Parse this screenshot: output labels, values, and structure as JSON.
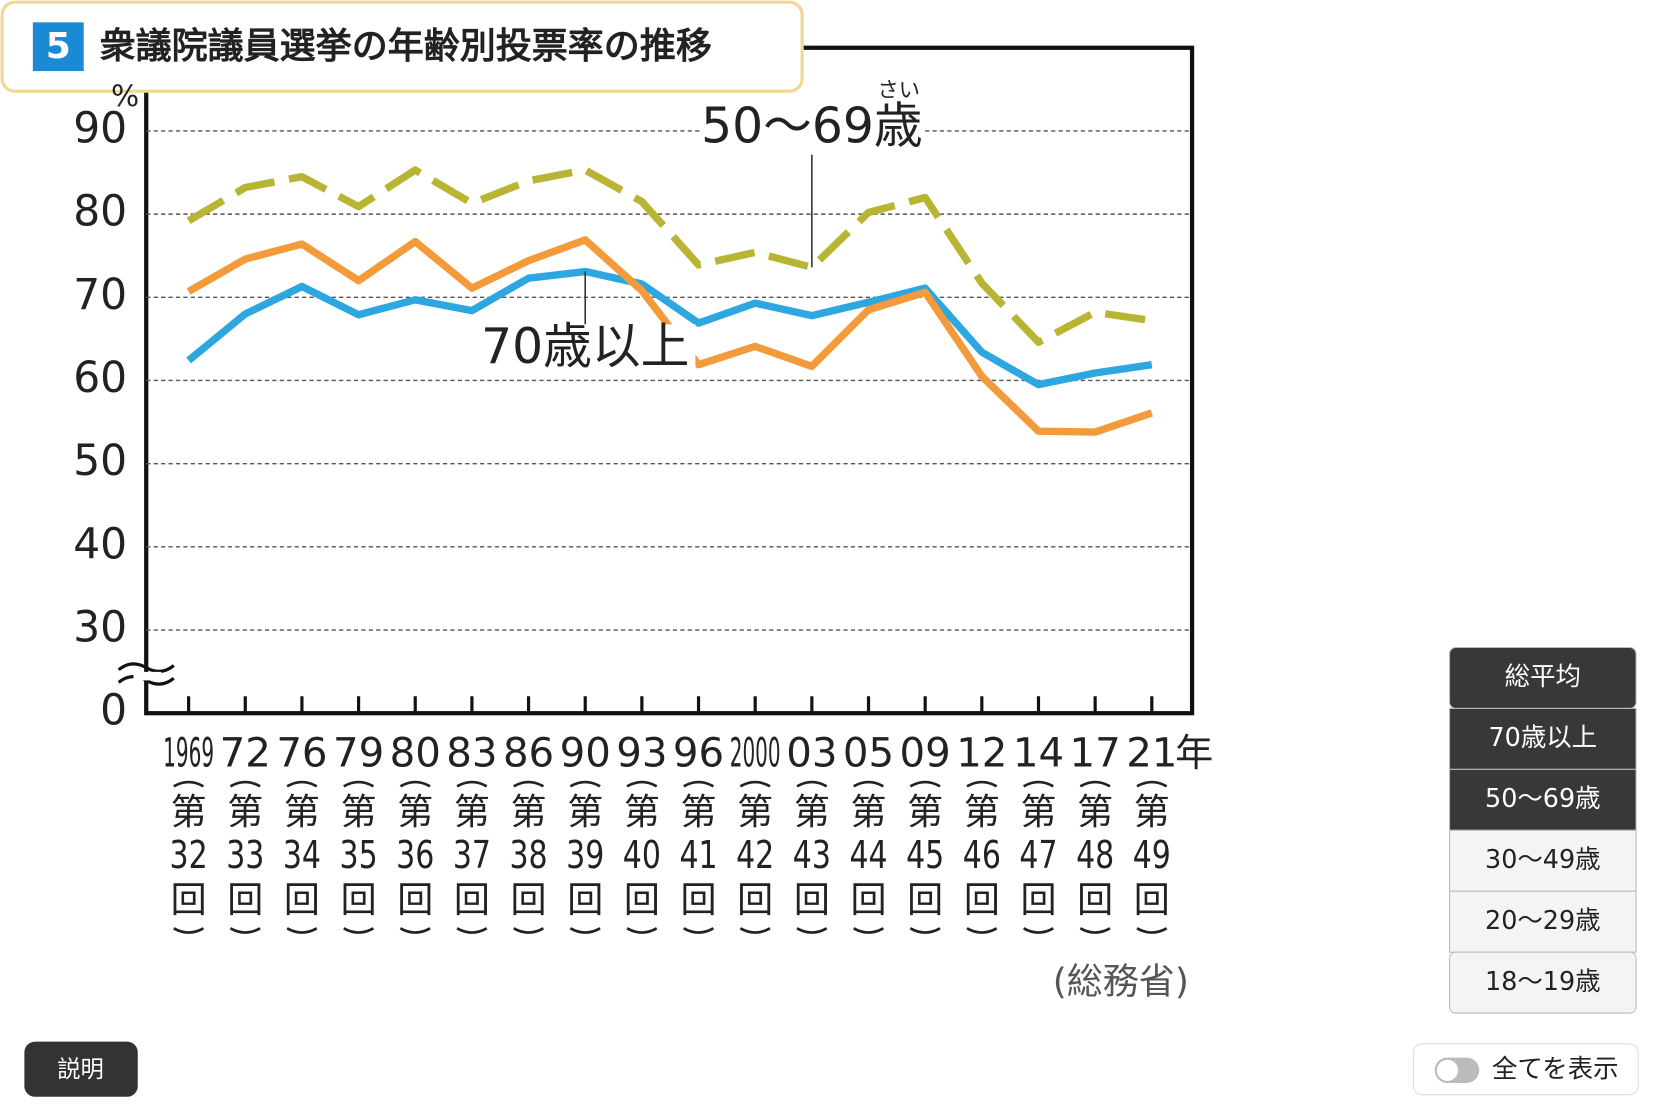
{
  "chart_data": {
    "type": "line",
    "title_number": "5",
    "title": "衆議院議員選挙の年齢別投票率の推移",
    "y_unit": "%",
    "categories": [
      "1969",
      "72",
      "76",
      "79",
      "80",
      "83",
      "86",
      "90",
      "93",
      "96",
      "2000",
      "03",
      "05",
      "09",
      "12",
      "14",
      "17",
      "21"
    ],
    "x_suffix": "年",
    "session_prefix": "第",
    "session_suffix": "回",
    "sessions": [
      32,
      33,
      34,
      35,
      36,
      37,
      38,
      39,
      40,
      41,
      42,
      43,
      44,
      45,
      46,
      47,
      48,
      49
    ],
    "series": [
      {
        "name": "総平均",
        "color": "#2ea7e0",
        "values": [
          62.4,
          68.0,
          71.3,
          67.9,
          69.7,
          68.4,
          72.3,
          73.1,
          71.6,
          66.9,
          69.3,
          67.8,
          69.4,
          71.1,
          63.4,
          59.5,
          60.9,
          61.9
        ]
      },
      {
        "name": "70歳以上",
        "color": "#f39a3a",
        "values": [
          70.7,
          74.6,
          76.4,
          72.0,
          76.7,
          71.1,
          74.4,
          76.9,
          70.8,
          61.9,
          64.1,
          61.7,
          68.5,
          70.6,
          60.5,
          53.9,
          53.8,
          56.1
        ]
      },
      {
        "name": "50〜69歳",
        "color": "#b9b534",
        "values": [
          79.2,
          83.2,
          84.5,
          80.9,
          85.3,
          81.3,
          84.0,
          85.3,
          81.5,
          73.9,
          75.4,
          73.6,
          80.2,
          82.0,
          71.7,
          64.6,
          68.2,
          67.2
        ]
      }
    ],
    "ylim": [
      20,
      100
    ],
    "yticks": [
      {
        "value": 20,
        "label": "0"
      },
      30,
      40,
      50,
      60,
      70,
      80,
      90
    ],
    "grid": true,
    "annotations": [
      {
        "text": "50〜69歳",
        "ruby": "さい",
        "series": 2,
        "index": 11
      },
      {
        "text": "70歳以上",
        "series": 0,
        "index": 7
      }
    ],
    "source": "(総務省)"
  },
  "ui": {
    "buttons": [
      {
        "label": "総平均",
        "active": true
      },
      {
        "label": "70歳以上",
        "active": true
      },
      {
        "label": "50〜69歳",
        "active": true
      },
      {
        "label": "30〜49歳",
        "active": false
      },
      {
        "label": "20〜29歳",
        "active": false
      },
      {
        "label": "18〜19歳",
        "active": false
      }
    ],
    "explain_button": "説明",
    "toggle_label": "全てを表示"
  }
}
